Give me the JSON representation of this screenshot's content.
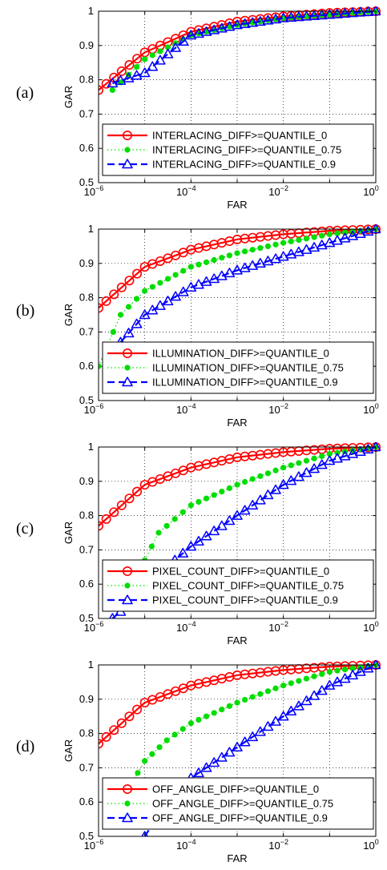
{
  "chart_data": [
    {
      "type": "line",
      "panel_label": "(a)",
      "xlabel": "FAR",
      "ylabel": "GAR",
      "xscale": "log",
      "xlim": [
        1e-06,
        1
      ],
      "ylim": [
        0.5,
        1
      ],
      "grid": "dotted",
      "legend_position": "lower-right",
      "x_ticks": [
        {
          "base": "10",
          "exp": "−6"
        },
        {
          "base": "10",
          "exp": "−4"
        },
        {
          "base": "10",
          "exp": "−2"
        },
        {
          "base": "10",
          "exp": "0"
        }
      ],
      "y_ticks": [
        "0.5",
        "0.6",
        "0.7",
        "0.8",
        "0.9",
        "1"
      ],
      "series": [
        {
          "name": "INTERLACING_DIFF>=QUANTILE_0",
          "color": "#ff0000",
          "style": "solid",
          "marker": "circle",
          "x": [
            1e-06,
            1e-05,
            0.0001,
            0.001,
            0.01,
            0.1,
            1
          ],
          "y": [
            0.77,
            0.88,
            0.94,
            0.97,
            0.985,
            0.995,
            1.0
          ]
        },
        {
          "name": "INTERLACING_DIFF>=QUANTILE_0.75",
          "color": "#00dd00",
          "style": "dotted",
          "marker": "dot",
          "x": [
            2e-06,
            1e-05,
            0.0001,
            0.001,
            0.01,
            0.1,
            1
          ],
          "y": [
            0.77,
            0.86,
            0.93,
            0.96,
            0.98,
            0.99,
            1.0
          ]
        },
        {
          "name": "INTERLACING_DIFF>=QUANTILE_0.9",
          "color": "#0000ff",
          "style": "dashed",
          "marker": "triangle",
          "x": [
            2e-06,
            1e-05,
            0.0001,
            0.001,
            0.01,
            0.1,
            1
          ],
          "y": [
            0.79,
            0.82,
            0.93,
            0.96,
            0.98,
            0.99,
            1.0
          ]
        }
      ]
    },
    {
      "type": "line",
      "panel_label": "(b)",
      "xlabel": "FAR",
      "ylabel": "GAR",
      "xscale": "log",
      "xlim": [
        1e-06,
        1
      ],
      "ylim": [
        0.5,
        1
      ],
      "grid": "dotted",
      "legend_position": "lower-right",
      "x_ticks": [
        {
          "base": "10",
          "exp": "−6"
        },
        {
          "base": "10",
          "exp": "−4"
        },
        {
          "base": "10",
          "exp": "−2"
        },
        {
          "base": "10",
          "exp": "0"
        }
      ],
      "y_ticks": [
        "0.5",
        "0.6",
        "0.7",
        "0.8",
        "0.9",
        "1"
      ],
      "series": [
        {
          "name": "ILLUMINATION_DIFF>=QUANTILE_0",
          "color": "#ff0000",
          "style": "solid",
          "marker": "circle",
          "x": [
            1e-06,
            1e-05,
            0.0001,
            0.001,
            0.01,
            0.1,
            1
          ],
          "y": [
            0.77,
            0.89,
            0.94,
            0.97,
            0.985,
            0.995,
            1.0
          ]
        },
        {
          "name": "ILLUMINATION_DIFF>=QUANTILE_0.75",
          "color": "#00dd00",
          "style": "dotted",
          "marker": "dot",
          "x": [
            1e-06,
            3e-06,
            1e-05,
            0.0001,
            0.001,
            0.01,
            0.1,
            1
          ],
          "y": [
            0.6,
            0.75,
            0.82,
            0.89,
            0.93,
            0.96,
            0.985,
            1.0
          ]
        },
        {
          "name": "ILLUMINATION_DIFF>=QUANTILE_0.9",
          "color": "#0000ff",
          "style": "dashed",
          "marker": "triangle",
          "x": [
            3e-06,
            1e-05,
            0.0001,
            0.001,
            0.01,
            0.1,
            1
          ],
          "y": [
            0.67,
            0.75,
            0.83,
            0.88,
            0.92,
            0.96,
            1.0
          ]
        }
      ]
    },
    {
      "type": "line",
      "panel_label": "(c)",
      "xlabel": "FAR",
      "ylabel": "GAR",
      "xscale": "log",
      "xlim": [
        1e-06,
        1
      ],
      "ylim": [
        0.5,
        1
      ],
      "grid": "dotted",
      "legend_position": "lower-right",
      "x_ticks": [
        {
          "base": "10",
          "exp": "−6"
        },
        {
          "base": "10",
          "exp": "−4"
        },
        {
          "base": "10",
          "exp": "−2"
        },
        {
          "base": "10",
          "exp": "0"
        }
      ],
      "y_ticks": [
        "0.5",
        "0.6",
        "0.7",
        "0.8",
        "0.9",
        "1"
      ],
      "series": [
        {
          "name": "PIXEL_COUNT_DIFF>=QUANTILE_0",
          "color": "#ff0000",
          "style": "solid",
          "marker": "circle",
          "x": [
            1e-06,
            1e-05,
            0.0001,
            0.001,
            0.01,
            0.1,
            1
          ],
          "y": [
            0.77,
            0.89,
            0.94,
            0.97,
            0.985,
            0.995,
            1.0
          ]
        },
        {
          "name": "PIXEL_COUNT_DIFF>=QUANTILE_0.75",
          "color": "#00dd00",
          "style": "dotted",
          "marker": "dot",
          "x": [
            7e-06,
            1e-05,
            2e-05,
            0.0001,
            0.001,
            0.01,
            0.1,
            1
          ],
          "y": [
            0.61,
            0.67,
            0.75,
            0.83,
            0.89,
            0.94,
            0.98,
            1.0
          ]
        },
        {
          "name": "PIXEL_COUNT_DIFF>=QUANTILE_0.9",
          "color": "#0000ff",
          "style": "dashed",
          "marker": "triangle",
          "x": [
            2e-06,
            1e-05,
            3e-05,
            0.0001,
            0.001,
            0.01,
            0.1,
            1
          ],
          "y": [
            0.5,
            0.58,
            0.65,
            0.71,
            0.8,
            0.89,
            0.96,
            1.0
          ]
        }
      ]
    },
    {
      "type": "line",
      "panel_label": "(d)",
      "xlabel": "FAR",
      "ylabel": "GAR",
      "xscale": "log",
      "xlim": [
        1e-06,
        1
      ],
      "ylim": [
        0.5,
        1
      ],
      "grid": "dotted",
      "legend_position": "lower-right",
      "x_ticks": [
        {
          "base": "10",
          "exp": "−6"
        },
        {
          "base": "10",
          "exp": "−4"
        },
        {
          "base": "10",
          "exp": "−2"
        },
        {
          "base": "10",
          "exp": "0"
        }
      ],
      "y_ticks": [
        "0.5",
        "0.6",
        "0.7",
        "0.8",
        "0.9",
        "1"
      ],
      "series": [
        {
          "name": "OFF_ANGLE_DIFF>=QUANTILE_0",
          "color": "#ff0000",
          "style": "solid",
          "marker": "circle",
          "x": [
            1e-06,
            1e-05,
            0.0001,
            0.001,
            0.01,
            0.1,
            1
          ],
          "y": [
            0.77,
            0.89,
            0.94,
            0.97,
            0.985,
            0.995,
            1.0
          ]
        },
        {
          "name": "OFF_ANGLE_DIFF>=QUANTILE_0.75",
          "color": "#00dd00",
          "style": "dotted",
          "marker": "dot",
          "x": [
            1.5e-06,
            5e-06,
            1e-05,
            3e-05,
            0.0001,
            0.001,
            0.01,
            0.1,
            1
          ],
          "y": [
            0.53,
            0.65,
            0.72,
            0.78,
            0.83,
            0.89,
            0.94,
            0.98,
            1.0
          ]
        },
        {
          "name": "OFF_ANGLE_DIFF>=QUANTILE_0.9",
          "color": "#0000ff",
          "style": "dashed",
          "marker": "triangle",
          "x": [
            1e-05,
            3e-05,
            0.0001,
            0.001,
            0.01,
            0.1,
            1
          ],
          "y": [
            0.5,
            0.6,
            0.67,
            0.76,
            0.85,
            0.94,
            1.0
          ]
        }
      ]
    }
  ]
}
